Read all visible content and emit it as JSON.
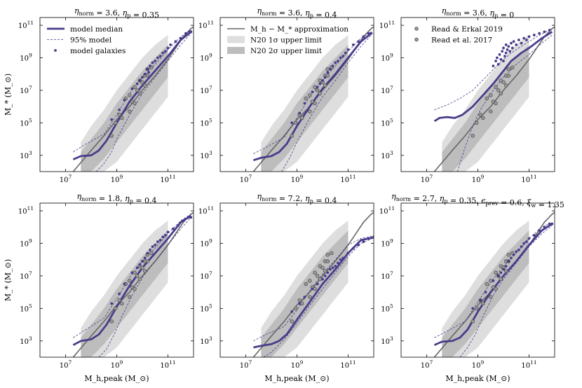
{
  "colors": {
    "model": "#483d8b",
    "approx": "#666666",
    "band1": "#bdbdbd",
    "band2": "#dedede",
    "obs_face": "#9e9e9e",
    "obs_edge": "#555555"
  },
  "chart_data": {
    "type": "scatter",
    "xscale": "log",
    "yscale": "log",
    "xlim": [
      1000000.0,
      1000000000000.0
    ],
    "ylim": [
      100,
      300000000000.0
    ],
    "xlabel": "M_h,peak (M_⊙)",
    "ylabel": "M_* (M_⊙)",
    "xticks": [
      {
        "exp": "7",
        "val": 10000000.0
      },
      {
        "exp": "9",
        "val": 1000000000.0
      },
      {
        "exp": "11",
        "val": 100000000000.0
      }
    ],
    "yticks": [
      {
        "exp": "3",
        "val": 1000.0
      },
      {
        "exp": "5",
        "val": 100000.0
      },
      {
        "exp": "7",
        "val": 10000000.0
      },
      {
        "exp": "9",
        "val": 1000000000.0
      },
      {
        "exp": "11",
        "val": 100000000000.0
      }
    ],
    "legends": [
      {
        "panel": 0,
        "entries": [
          {
            "key": "median",
            "label": "model median"
          },
          {
            "key": "p95",
            "label": "95% model"
          },
          {
            "key": "galaxies",
            "label": "model galaxies"
          }
        ]
      },
      {
        "panel": 1,
        "entries": [
          {
            "key": "approx",
            "label": "M_h − M_* approximation"
          },
          {
            "key": "band1",
            "label": "N20 1σ upper limit"
          },
          {
            "key": "band2",
            "label": "N20 2σ upper limit"
          }
        ]
      },
      {
        "panel": 2,
        "entries": [
          {
            "key": "read19",
            "label": "Read & Erkal 2019"
          },
          {
            "key": "read17",
            "label": "Read et al. 2017"
          }
        ]
      }
    ],
    "approximation": {
      "log_x": [
        7.3,
        8,
        8.5,
        9,
        9.5,
        10,
        10.5,
        11,
        11.3,
        11.6,
        11.9,
        12.2
      ],
      "log_y": [
        2.0,
        3.3,
        4.2,
        5.2,
        6.0,
        7.0,
        7.9,
        8.9,
        9.6,
        10.3,
        10.8,
        11.1
      ]
    },
    "band_1sigma": {
      "log_x": [
        7.6,
        8,
        8.5,
        9,
        9.5,
        10,
        10.5,
        11
      ],
      "lower": [
        2.0,
        2.0,
        2.8,
        3.8,
        4.8,
        5.8,
        6.8,
        7.8
      ],
      "upper": [
        3.2,
        4.0,
        5.0,
        6.2,
        7.2,
        8.2,
        9.0,
        9.8
      ]
    },
    "band_2sigma": {
      "log_x": [
        7.6,
        8,
        8.5,
        9,
        9.5,
        10,
        10.5,
        11
      ],
      "lower": [
        2.0,
        2.0,
        2.0,
        2.6,
        3.6,
        4.6,
        5.6,
        6.6
      ],
      "upper": [
        3.8,
        4.8,
        5.8,
        7.0,
        8.0,
        9.0,
        9.8,
        10.4
      ]
    },
    "observations": {
      "read19": {
        "log_x": [
          8.8,
          8.95,
          9.1,
          9.2,
          9.35,
          9.5,
          9.6,
          9.7,
          9.8,
          9.9,
          10.0,
          10.1,
          10.2
        ],
        "log_y": [
          4.2,
          5.0,
          5.5,
          5.3,
          6.5,
          6.7,
          6.3,
          7.2,
          7.0,
          7.6,
          7.5,
          7.9,
          8.3
        ]
      },
      "read17": {
        "log_x": [
          9.5,
          9.7,
          9.9,
          10.1,
          10.2,
          10.35
        ],
        "log_y": [
          5.7,
          6.2,
          6.8,
          7.3,
          7.9,
          8.4
        ]
      }
    },
    "panels": [
      {
        "title": "η_norm = 3.6,  η_p = 0.35",
        "median": {
          "log_x": [
            7.3,
            7.6,
            8.0,
            8.3,
            8.6,
            9.0,
            9.5,
            10,
            10.5,
            11,
            11.5,
            11.9
          ],
          "log_y": [
            2.75,
            2.95,
            3.0,
            3.3,
            3.9,
            5.0,
            6.3,
            7.3,
            8.2,
            9.1,
            10.1,
            10.6
          ]
        },
        "p95_upper": {
          "log_x": [
            7.3,
            7.8,
            8.5,
            9,
            9.5,
            10,
            10.5,
            11,
            11.5,
            11.9
          ],
          "log_y": [
            3.2,
            3.7,
            4.3,
            5.5,
            6.8,
            7.8,
            8.6,
            9.5,
            10.3,
            10.7
          ]
        },
        "p95_lower": {
          "log_x": [
            8.2,
            8.5,
            8.8,
            9,
            9.5,
            10,
            10.5,
            11,
            11.5,
            11.9
          ],
          "log_y": [
            2.0,
            2.5,
            3.2,
            4.0,
            5.5,
            6.8,
            7.8,
            8.8,
            9.8,
            10.5
          ]
        },
        "galaxies": {
          "log_x": [
            8.8,
            9.1,
            9.3,
            9.6,
            9.8,
            9.9,
            10.0,
            10.1,
            10.2,
            10.25,
            10.3,
            10.4,
            10.5,
            10.6,
            10.7,
            10.8,
            10.9,
            11.0,
            11.1,
            11.3,
            11.5,
            11.7,
            11.85,
            11.9
          ],
          "log_y": [
            5.2,
            5.8,
            6.4,
            7.1,
            7.4,
            7.6,
            7.8,
            8.0,
            8.3,
            8.1,
            8.5,
            8.7,
            8.8,
            9.0,
            9.1,
            9.3,
            9.4,
            9.6,
            9.8,
            10.0,
            10.2,
            10.5,
            10.6,
            10.6
          ]
        }
      },
      {
        "title": "η_norm = 3.6,  η_p = 0.4",
        "median": {
          "log_x": [
            7.3,
            7.6,
            8.0,
            8.3,
            8.6,
            9.0,
            9.5,
            10,
            10.5,
            11,
            11.5,
            11.9
          ],
          "log_y": [
            2.7,
            2.85,
            2.95,
            3.2,
            3.7,
            4.8,
            6.0,
            7.1,
            8.0,
            9.0,
            10.0,
            10.5
          ]
        },
        "p95_upper": {
          "log_x": [
            7.3,
            7.8,
            8.5,
            9,
            9.5,
            10,
            10.5,
            11,
            11.5,
            11.9
          ],
          "log_y": [
            3.1,
            3.5,
            4.1,
            5.3,
            6.6,
            7.6,
            8.5,
            9.4,
            10.2,
            10.6
          ]
        },
        "p95_lower": {
          "log_x": [
            8.4,
            8.7,
            9,
            9.5,
            10,
            10.5,
            11,
            11.5,
            11.9
          ],
          "log_y": [
            2.0,
            2.8,
            3.8,
            5.3,
            6.6,
            7.6,
            8.7,
            9.7,
            10.4
          ]
        },
        "galaxies": {
          "log_x": [
            8.8,
            9.1,
            9.3,
            9.6,
            9.8,
            9.9,
            10.0,
            10.1,
            10.2,
            10.3,
            10.4,
            10.5,
            10.6,
            10.7,
            10.8,
            10.9,
            11.0,
            11.2,
            11.4,
            11.6,
            11.8,
            11.9
          ],
          "log_y": [
            5.0,
            5.6,
            6.2,
            6.9,
            7.2,
            7.4,
            7.6,
            7.8,
            8.1,
            8.3,
            8.5,
            8.7,
            8.8,
            9.0,
            9.1,
            9.3,
            9.5,
            9.8,
            10.0,
            10.3,
            10.5,
            10.5
          ]
        }
      },
      {
        "title": "η_norm = 3.6,  η_p = 0",
        "median": {
          "log_x": [
            7.3,
            7.5,
            7.8,
            8.1,
            8.4,
            8.8,
            9.2,
            9.6,
            10,
            10.3,
            10.7,
            11,
            11.5,
            11.9
          ],
          "log_y": [
            5.1,
            5.3,
            5.35,
            5.3,
            5.5,
            6.0,
            6.7,
            7.4,
            8.2,
            8.8,
            9.3,
            9.6,
            10.2,
            10.6
          ]
        },
        "p95_upper": {
          "log_x": [
            7.3,
            7.8,
            8.3,
            8.8,
            9.3,
            9.8,
            10.3,
            10.8,
            11.3,
            11.9
          ],
          "log_y": [
            5.8,
            6.1,
            6.5,
            7.0,
            7.8,
            8.6,
            9.3,
            9.8,
            10.3,
            10.8
          ]
        },
        "p95_lower": {
          "log_x": [
            8.2,
            8.5,
            8.8,
            9.1,
            9.5,
            10,
            10.5,
            11,
            11.5,
            11.9
          ],
          "log_y": [
            2.0,
            3.5,
            4.8,
            5.8,
            6.8,
            7.8,
            8.6,
            9.2,
            9.9,
            10.4
          ]
        },
        "galaxies": {
          "log_x": [
            9.6,
            9.7,
            9.75,
            9.8,
            9.85,
            9.9,
            9.95,
            10.0,
            10.0,
            10.05,
            10.1,
            10.1,
            10.15,
            10.2,
            10.25,
            10.3,
            10.35,
            10.4,
            10.5,
            10.6,
            10.7,
            10.8,
            10.9,
            11.0,
            11.2,
            11.4,
            11.6,
            11.8
          ],
          "log_y": [
            8.5,
            8.8,
            9.0,
            8.6,
            9.2,
            8.9,
            9.4,
            8.8,
            9.6,
            9.1,
            9.3,
            9.8,
            9.5,
            9.7,
            9.4,
            9.9,
            9.6,
            10.0,
            9.8,
            10.1,
            9.9,
            10.2,
            10.1,
            10.3,
            10.4,
            10.5,
            10.6,
            10.7
          ]
        }
      },
      {
        "title": "η_norm = 1.8,  η_p = 0.4",
        "median": {
          "log_x": [
            7.3,
            7.6,
            8.0,
            8.3,
            8.6,
            9.0,
            9.5,
            10,
            10.5,
            11,
            11.5,
            11.9
          ],
          "log_y": [
            2.75,
            3.0,
            3.1,
            3.4,
            4.0,
            5.1,
            6.4,
            7.5,
            8.4,
            9.3,
            10.3,
            10.7
          ]
        },
        "p95_upper": {
          "log_x": [
            7.3,
            7.8,
            8.5,
            9,
            9.5,
            10,
            10.5,
            11,
            11.5,
            11.9
          ],
          "log_y": [
            3.2,
            3.7,
            4.4,
            5.6,
            6.9,
            7.9,
            8.7,
            9.6,
            10.4,
            10.8
          ]
        },
        "p95_lower": {
          "log_x": [
            8.3,
            8.6,
            8.9,
            9.2,
            9.6,
            10,
            10.5,
            11,
            11.5,
            11.9
          ],
          "log_y": [
            2.0,
            2.5,
            3.4,
            4.5,
            5.8,
            6.9,
            7.9,
            8.9,
            9.9,
            10.6
          ]
        },
        "galaxies": {
          "log_x": [
            8.8,
            9.1,
            9.3,
            9.6,
            9.8,
            9.9,
            10.0,
            10.1,
            10.2,
            10.3,
            10.4,
            10.5,
            10.6,
            10.7,
            10.8,
            10.9,
            11.0,
            11.2,
            11.4,
            11.6,
            11.8,
            11.9
          ],
          "log_y": [
            5.3,
            5.9,
            6.5,
            7.2,
            7.5,
            7.7,
            7.9,
            8.1,
            8.4,
            8.6,
            8.8,
            8.9,
            9.1,
            9.2,
            9.4,
            9.5,
            9.7,
            9.9,
            10.1,
            10.4,
            10.6,
            10.6
          ]
        }
      },
      {
        "title": "η_norm = 7.2,  η_p = 0.4",
        "median": {
          "log_x": [
            7.3,
            7.6,
            8.0,
            8.3,
            8.6,
            9.0,
            9.5,
            10,
            10.5,
            11,
            11.5,
            12.1
          ],
          "log_y": [
            2.6,
            2.7,
            2.8,
            3.0,
            3.4,
            4.3,
            5.4,
            6.5,
            7.4,
            8.4,
            9.2,
            9.4
          ]
        },
        "p95_upper": {
          "log_x": [
            7.3,
            7.8,
            8.5,
            9,
            9.5,
            10,
            10.5,
            11,
            11.5,
            12.1
          ],
          "log_y": [
            3.0,
            3.4,
            3.9,
            4.9,
            6.1,
            7.1,
            8.0,
            8.9,
            9.3,
            9.5
          ]
        },
        "p95_lower": {
          "log_x": [
            7.7,
            8.0,
            8.5,
            9,
            9.5,
            10,
            10.5,
            11,
            11.5,
            12.1
          ],
          "log_y": [
            2.0,
            2.3,
            3.1,
            4.1,
            5.2,
            6.2,
            7.2,
            8.2,
            9.0,
            9.4
          ]
        },
        "galaxies": {
          "log_x": [
            8.8,
            9.1,
            9.3,
            9.6,
            9.8,
            10.0,
            10.1,
            10.2,
            10.3,
            10.4,
            10.5,
            10.6,
            10.7,
            10.8,
            11.0,
            11.2,
            11.4,
            11.6,
            11.8,
            12.0,
            12.1
          ],
          "log_y": [
            4.8,
            5.3,
            5.7,
            6.2,
            6.5,
            6.8,
            7.0,
            7.2,
            7.4,
            7.5,
            7.6,
            7.8,
            8.0,
            8.1,
            8.4,
            8.7,
            8.9,
            9.1,
            9.3,
            9.4,
            9.4
          ]
        }
      },
      {
        "title": "η_norm = 2.7,  η_p = 0.35,  ϵ_prev = 0.6,  ξ_w = 1.35",
        "median": {
          "log_x": [
            7.3,
            7.6,
            8.0,
            8.3,
            8.6,
            9.0,
            9.5,
            10,
            10.5,
            11,
            11.5,
            11.9
          ],
          "log_y": [
            2.75,
            2.95,
            3.0,
            3.2,
            3.7,
            4.8,
            6.0,
            7.0,
            7.9,
            8.9,
            9.8,
            10.2
          ]
        },
        "p95_upper": {
          "log_x": [
            7.3,
            7.8,
            8.5,
            9,
            9.5,
            10,
            10.5,
            11,
            11.5,
            11.9
          ],
          "log_y": [
            3.2,
            3.6,
            4.2,
            5.4,
            6.6,
            7.6,
            8.4,
            9.3,
            10.0,
            10.3
          ]
        },
        "p95_lower": {
          "log_x": [
            8.3,
            8.6,
            8.9,
            9.2,
            9.6,
            10,
            10.5,
            11,
            11.5,
            11.9
          ],
          "log_y": [
            2.0,
            2.6,
            3.4,
            4.5,
            5.8,
            6.8,
            7.8,
            8.8,
            9.6,
            10.1
          ]
        },
        "galaxies": {
          "log_x": [
            8.8,
            9.1,
            9.3,
            9.6,
            9.8,
            9.9,
            10.0,
            10.1,
            10.2,
            10.3,
            10.4,
            10.5,
            10.6,
            10.7,
            10.8,
            10.9,
            11.0,
            11.2,
            11.4,
            11.6,
            11.8,
            11.9
          ],
          "log_y": [
            5.0,
            5.5,
            6.0,
            6.7,
            7.0,
            7.2,
            7.4,
            7.6,
            7.9,
            8.1,
            8.3,
            8.5,
            8.6,
            8.8,
            9.0,
            9.1,
            9.3,
            9.5,
            9.8,
            10.0,
            10.2,
            10.2
          ]
        }
      }
    ]
  }
}
